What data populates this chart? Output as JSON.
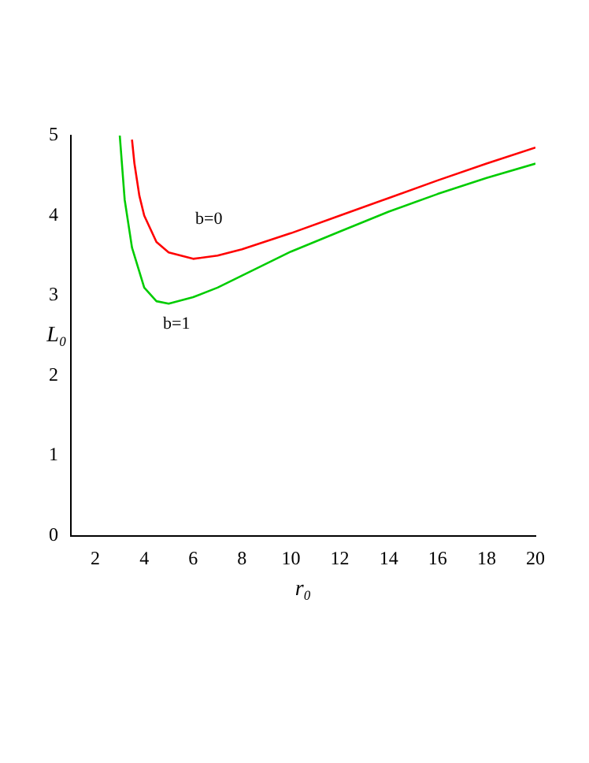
{
  "chart_data": {
    "type": "line",
    "xlabel": "r₀",
    "ylabel": "L₀",
    "xlim": [
      1,
      20
    ],
    "xticks": [
      2,
      4,
      6,
      8,
      10,
      12,
      14,
      16,
      18,
      20
    ],
    "ylim": [
      0,
      5
    ],
    "yticks": [
      0,
      1,
      2,
      3,
      4,
      5
    ],
    "grid": false,
    "legend": false,
    "marker": "none",
    "line_style": "solid",
    "series": [
      {
        "name": "b=0",
        "color": "#ff0000",
        "x": [
          3.5,
          3.6,
          3.8,
          4,
          4.5,
          5,
          6,
          7,
          8,
          10,
          12,
          14,
          16,
          18,
          20
        ],
        "values": [
          4.95,
          4.65,
          4.25,
          4,
          3.67,
          3.54,
          3.46,
          3.5,
          3.58,
          3.78,
          4,
          4.22,
          4.44,
          4.65,
          4.85
        ]
      },
      {
        "name": "b=1",
        "color": "#00cc00",
        "x": [
          3.0,
          3.2,
          3.5,
          4,
          4.5,
          5,
          6,
          7,
          8,
          10,
          12,
          14,
          16,
          18,
          20
        ],
        "values": [
          5,
          4.2,
          3.6,
          3.1,
          2.93,
          2.9,
          2.98,
          3.1,
          3.25,
          3.55,
          3.8,
          4.05,
          4.27,
          4.47,
          4.65
        ]
      }
    ]
  }
}
